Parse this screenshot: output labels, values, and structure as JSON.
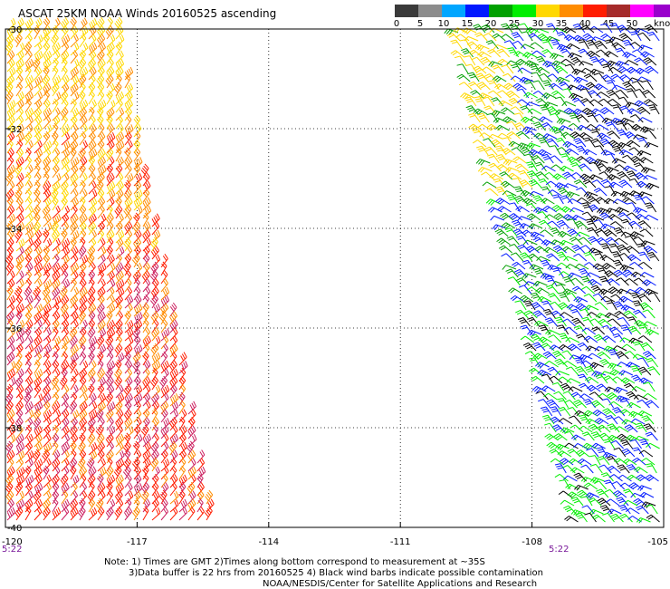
{
  "title": "ASCAT 25KM NOAA Winds 20160525 ascending",
  "legend": {
    "unit": "knots",
    "bins": [
      {
        "label": "0",
        "color": "#3a3a3a"
      },
      {
        "label": "5",
        "color": "#8c8c8c"
      },
      {
        "label": "10",
        "color": "#00a6ff"
      },
      {
        "label": "15",
        "color": "#0018ff"
      },
      {
        "label": "20",
        "color": "#00a000"
      },
      {
        "label": "25",
        "color": "#00ee00"
      },
      {
        "label": "30",
        "color": "#ffd800"
      },
      {
        "label": "35",
        "color": "#ff8c00"
      },
      {
        "label": "40",
        "color": "#ff1c00"
      },
      {
        "label": "45",
        "color": "#a52a2a"
      },
      {
        "label": "50",
        "color": "#ff00ff"
      },
      {
        "label": "",
        "color": "#9900cc"
      }
    ]
  },
  "map": {
    "lon_range": [
      -120,
      -105
    ],
    "lat_range": [
      -40,
      -30
    ],
    "lat_ticks": [
      "-30",
      "-32",
      "-34",
      "-36",
      "-38",
      "-40"
    ],
    "lon_ticks": [
      "-120",
      "-117",
      "-114",
      "-111",
      "-108",
      "-105"
    ],
    "time_labels": [
      "5:22",
      "5:22"
    ],
    "swaths": [
      {
        "name": "west-swath",
        "dominant_colors": [
          "#ffd800",
          "#ff8c00",
          "#ff1c00",
          "#cc2060"
        ]
      },
      {
        "name": "east-swath",
        "dominant_colors": [
          "#00a000",
          "#00ee00",
          "#0018ff",
          "#ffd800",
          "#000000"
        ]
      }
    ]
  },
  "notes": {
    "line1": "Note: 1) Times are GMT 2)Times along bottom correspond to measurement at ~35S",
    "line2": "3)Data buffer is 22 hrs from 20160525 4) Black wind barbs indicate possible contamination",
    "line3": "NOAA/NESDIS/Center for Satellite Applications and Research"
  }
}
